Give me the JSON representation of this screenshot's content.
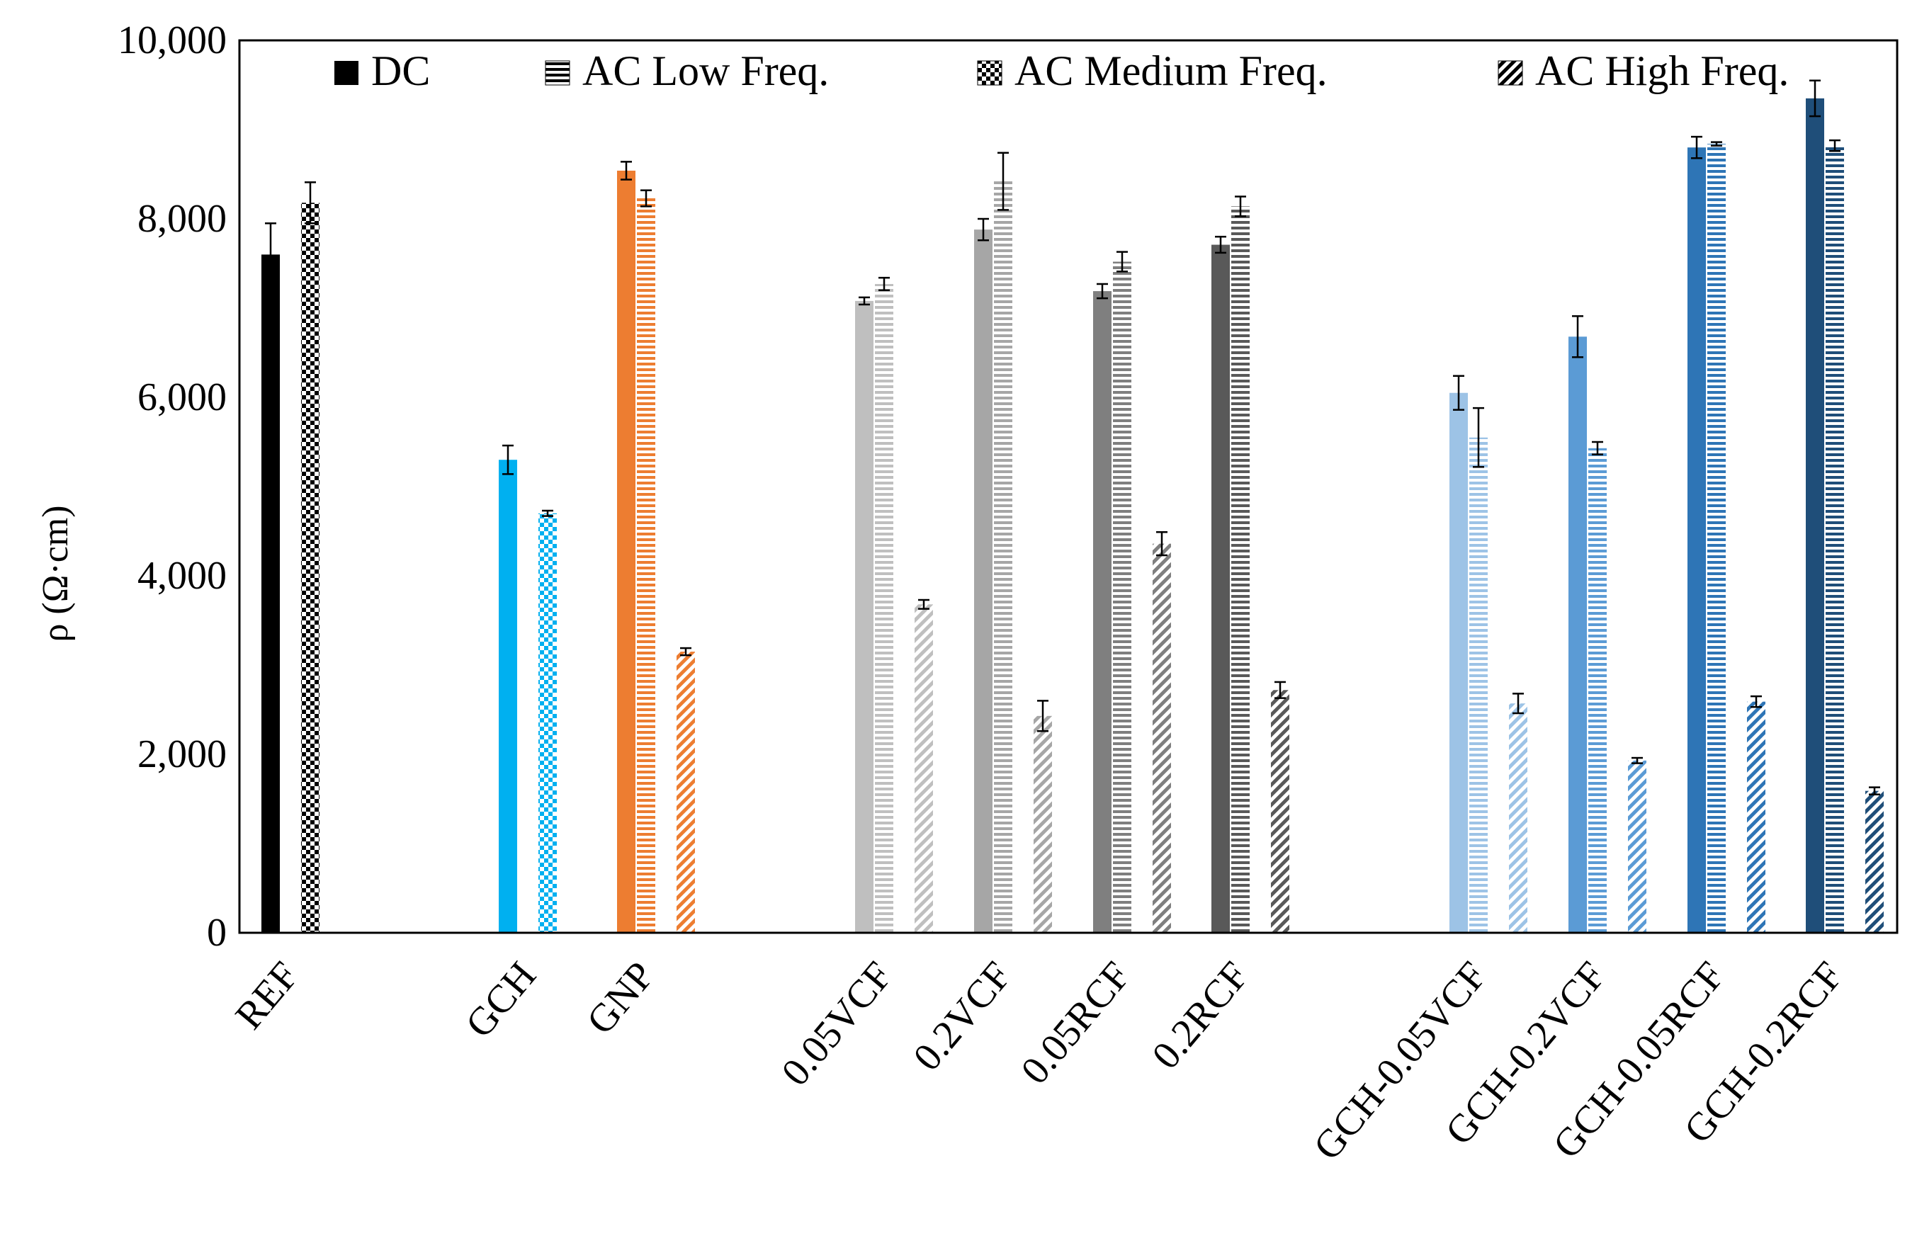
{
  "chart_data": {
    "type": "bar",
    "ylabel": "ρ (Ω·cm)",
    "ylim": [
      0,
      10000
    ],
    "yticks": [
      "0",
      "2,000",
      "4,000",
      "6,000",
      "8,000",
      "10,000"
    ],
    "ytick_values": [
      0,
      2000,
      4000,
      6000,
      8000,
      10000
    ],
    "grid": false,
    "legend_position": "top",
    "legend": [
      {
        "name": "DC",
        "pattern": "solid"
      },
      {
        "name": "AC Low Freq.",
        "pattern": "hstripes"
      },
      {
        "name": "AC Medium Freq.",
        "pattern": "checker"
      },
      {
        "name": "AC High Freq.",
        "pattern": "diag"
      }
    ],
    "categories": [
      "REF",
      "GCH",
      "GNP",
      "0.05VCF",
      "0.2VCF",
      "0.05RCF",
      "0.2RCF",
      "GCH-0.05VCF",
      "GCH-0.2VCF",
      "GCH-0.05RCF",
      "GCH-0.2RCF"
    ],
    "category_colors": [
      "#000000",
      "#00b0f0",
      "#ed7d31",
      "#bfbfbf",
      "#a6a6a6",
      "#7f7f7f",
      "#595959",
      "#9dc3e6",
      "#5b9bd5",
      "#2e75b6",
      "#1f4e79"
    ],
    "bars": [
      {
        "category": "REF",
        "pattern": "solid",
        "value": 7600,
        "error": 350
      },
      {
        "category": "REF",
        "pattern": "checker",
        "value": 8180,
        "error": 230
      },
      {
        "category": "GCH",
        "pattern": "solid",
        "value": 5300,
        "error": 160
      },
      {
        "category": "GCH",
        "pattern": "checker",
        "value": 4700,
        "error": 30
      },
      {
        "category": "GNP",
        "pattern": "solid",
        "value": 8540,
        "error": 100
      },
      {
        "category": "GNP",
        "pattern": "hstripes",
        "value": 8230,
        "error": 90
      },
      {
        "category": "GNP",
        "pattern": "diag",
        "value": 3150,
        "error": 40
      },
      {
        "category": "0.05VCF",
        "pattern": "solid",
        "value": 7080,
        "error": 40
      },
      {
        "category": "0.05VCF",
        "pattern": "hstripes",
        "value": 7270,
        "error": 70
      },
      {
        "category": "0.05VCF",
        "pattern": "diag",
        "value": 3680,
        "error": 50
      },
      {
        "category": "0.2VCF",
        "pattern": "solid",
        "value": 7880,
        "error": 120
      },
      {
        "category": "0.2VCF",
        "pattern": "hstripes",
        "value": 8420,
        "error": 320
      },
      {
        "category": "0.2VCF",
        "pattern": "diag",
        "value": 2430,
        "error": 170
      },
      {
        "category": "0.05RCF",
        "pattern": "solid",
        "value": 7190,
        "error": 80
      },
      {
        "category": "0.05RCF",
        "pattern": "hstripes",
        "value": 7520,
        "error": 110
      },
      {
        "category": "0.05RCF",
        "pattern": "diag",
        "value": 4360,
        "error": 130
      },
      {
        "category": "0.2RCF",
        "pattern": "solid",
        "value": 7710,
        "error": 90
      },
      {
        "category": "0.2RCF",
        "pattern": "hstripes",
        "value": 8140,
        "error": 110
      },
      {
        "category": "0.2RCF",
        "pattern": "diag",
        "value": 2720,
        "error": 90
      },
      {
        "category": "GCH-0.05VCF",
        "pattern": "solid",
        "value": 6050,
        "error": 190
      },
      {
        "category": "GCH-0.05VCF",
        "pattern": "hstripes",
        "value": 5550,
        "error": 330
      },
      {
        "category": "GCH-0.05VCF",
        "pattern": "diag",
        "value": 2570,
        "error": 110
      },
      {
        "category": "GCH-0.2VCF",
        "pattern": "solid",
        "value": 6680,
        "error": 230
      },
      {
        "category": "GCH-0.2VCF",
        "pattern": "hstripes",
        "value": 5430,
        "error": 70
      },
      {
        "category": "GCH-0.2VCF",
        "pattern": "diag",
        "value": 1930,
        "error": 30
      },
      {
        "category": "GCH-0.05RCF",
        "pattern": "solid",
        "value": 8800,
        "error": 120
      },
      {
        "category": "GCH-0.05RCF",
        "pattern": "hstripes",
        "value": 8840,
        "error": 20
      },
      {
        "category": "GCH-0.05RCF",
        "pattern": "diag",
        "value": 2590,
        "error": 60
      },
      {
        "category": "GCH-0.2RCF",
        "pattern": "solid",
        "value": 9350,
        "error": 200
      },
      {
        "category": "GCH-0.2RCF",
        "pattern": "hstripes",
        "value": 8820,
        "error": 60
      },
      {
        "category": "GCH-0.2RCF",
        "pattern": "diag",
        "value": 1590,
        "error": 40
      }
    ]
  }
}
